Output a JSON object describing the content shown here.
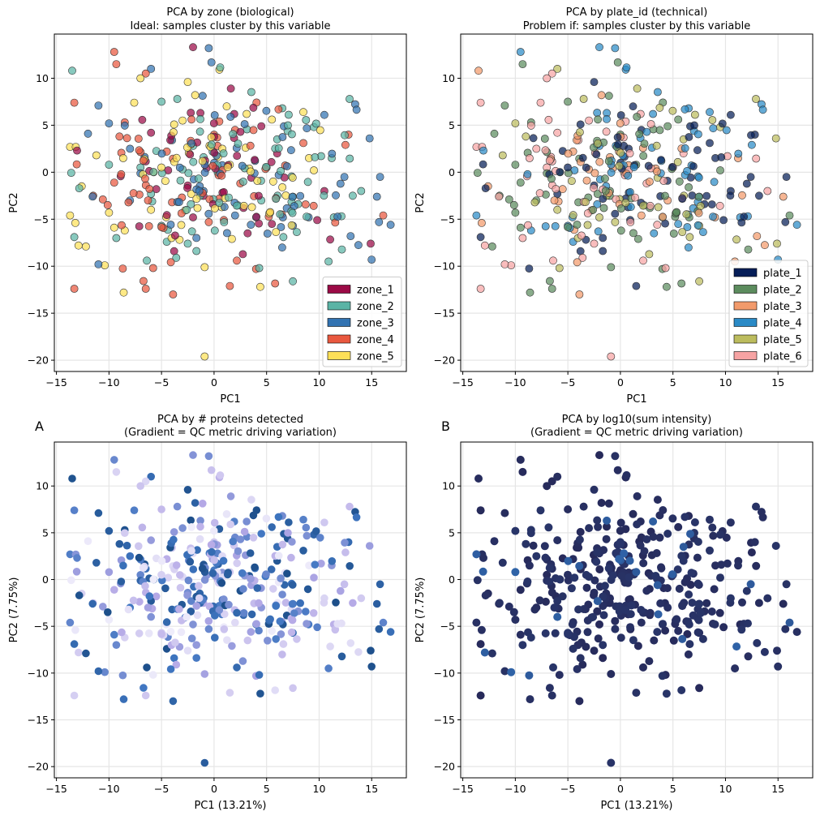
{
  "colors": {
    "zone": [
      "#9b0a46",
      "#5ab4a5",
      "#3273b2",
      "#e9583f",
      "#fde057"
    ],
    "plate": [
      "#061e58",
      "#5c8c5e",
      "#f29a6b",
      "#2a8ac6",
      "#bcbc5e",
      "#f6a3a3"
    ],
    "grid": "#e6e6e6",
    "proteins_gradient": [
      "#f0eefb",
      "#b4a8e6",
      "#3f76c1",
      "#1d4f8a"
    ],
    "intensity_gradient": [
      "#272a5a",
      "#2f63a8"
    ]
  },
  "chart_data": [
    {
      "id": "zone",
      "type": "scatter",
      "title_lines": [
        "PCA by zone (biological)",
        "Ideal: samples cluster by this variable"
      ],
      "xlabel": "PC1",
      "ylabel": "PC2",
      "xlim": [
        -15.2,
        18.3
      ],
      "ylim": [
        -21.2,
        14.7
      ],
      "xticks": [
        -15,
        -10,
        -5,
        0,
        5,
        10,
        15
      ],
      "yticks": [
        10,
        5,
        0,
        -5,
        -10,
        -15,
        -20
      ],
      "grid": true,
      "legend_position": "lower-right",
      "legend": [
        "zone_1",
        "zone_2",
        "zone_3",
        "zone_4",
        "zone_5"
      ],
      "point_source": "PCA scores of all samples (approx. 400 points)"
    },
    {
      "id": "plate",
      "type": "scatter",
      "title_lines": [
        "PCA by plate_id (technical)",
        "Problem if: samples cluster by this variable"
      ],
      "xlabel": "PC1",
      "ylabel": "PC2",
      "xlim": [
        -15.2,
        18.3
      ],
      "ylim": [
        -21.2,
        14.7
      ],
      "xticks": [
        -15,
        -10,
        -5,
        0,
        5,
        10,
        15
      ],
      "yticks": [
        10,
        5,
        0,
        -5,
        -10,
        -15,
        -20
      ],
      "grid": true,
      "legend_position": "lower-right",
      "legend": [
        "plate_1",
        "plate_2",
        "plate_3",
        "plate_4",
        "plate_5",
        "plate_6"
      ]
    },
    {
      "id": "proteins",
      "type": "scatter",
      "panel_letter": "A",
      "title_lines": [
        "PCA by # proteins detected",
        "(Gradient = QC metric driving variation)"
      ],
      "xlabel": "PC1 (13.21%)",
      "ylabel": "PC2 (7.75%)",
      "xlim": [
        -15.2,
        18.3
      ],
      "ylim": [
        -21.2,
        14.7
      ],
      "xticks": [
        -15,
        -10,
        -5,
        0,
        5,
        10,
        15
      ],
      "yticks": [
        10,
        5,
        0,
        -5,
        -10,
        -15,
        -20
      ],
      "grid": true
    },
    {
      "id": "intensity",
      "type": "scatter",
      "panel_letter": "B",
      "title_lines": [
        "PCA by log10(sum intensity)",
        "(Gradient = QC metric driving variation)"
      ],
      "xlabel": "PC1 (13.21%)",
      "ylabel": "PC2 (7.75%)",
      "xlim": [
        -15.2,
        18.3
      ],
      "ylim": [
        -21.2,
        14.7
      ],
      "xticks": [
        -15,
        -10,
        -5,
        0,
        5,
        10,
        15
      ],
      "yticks": [
        10,
        5,
        0,
        -5,
        -10,
        -15,
        -20
      ],
      "grid": true
    }
  ],
  "anchor_points": [
    [
      -13.5,
      10.8
    ],
    [
      -2.0,
      13.3
    ],
    [
      -0.5,
      13.2
    ],
    [
      -9.5,
      12.8
    ],
    [
      -9.3,
      11.5
    ],
    [
      -6.0,
      11.0
    ],
    [
      -6.5,
      10.5
    ],
    [
      -7.0,
      10.0
    ],
    [
      -2.5,
      9.6
    ],
    [
      -1.8,
      8.2
    ],
    [
      1.6,
      8.9
    ],
    [
      -13.3,
      7.4
    ],
    [
      -11.0,
      7.1
    ],
    [
      -5.0,
      7.5
    ],
    [
      -3.5,
      7.8
    ],
    [
      1.2,
      7.0
    ],
    [
      -10.0,
      5.2
    ],
    [
      -8.5,
      5.3
    ],
    [
      -3.0,
      5.5
    ],
    [
      0.5,
      5.4
    ],
    [
      3.1,
      6.2
    ],
    [
      5.5,
      5.6
    ],
    [
      6.5,
      6.8
    ],
    [
      8.5,
      6.4
    ],
    [
      10.5,
      6.1
    ],
    [
      12.9,
      7.8
    ],
    [
      -12.0,
      4.1
    ],
    [
      -9.0,
      3.8
    ],
    [
      -6.0,
      4.2
    ],
    [
      -4.0,
      3.4
    ],
    [
      0.0,
      4.0
    ],
    [
      2.0,
      4.5
    ],
    [
      4.5,
      4.9
    ],
    [
      7.0,
      4.4
    ],
    [
      9.5,
      4.8
    ],
    [
      12.8,
      4.0
    ],
    [
      14.8,
      3.6
    ],
    [
      -13.7,
      2.7
    ],
    [
      -11.2,
      1.8
    ],
    [
      -8.0,
      2.5
    ],
    [
      -4.5,
      2.2
    ],
    [
      -1.0,
      1.6
    ],
    [
      3.0,
      2.6
    ],
    [
      6.0,
      2.0
    ],
    [
      8.5,
      3.1
    ],
    [
      12.5,
      2.9
    ],
    [
      -10.0,
      0.8
    ],
    [
      -7.0,
      0.5
    ],
    [
      -3.0,
      0.3
    ],
    [
      1.5,
      0.8
    ],
    [
      5.0,
      0.5
    ],
    [
      9.5,
      0.2
    ],
    [
      12.4,
      -0.5
    ],
    [
      15.8,
      -0.5
    ],
    [
      -12.6,
      -1.5
    ],
    [
      -9.5,
      -1.1
    ],
    [
      -5.5,
      -1.8
    ],
    [
      -2.5,
      -1.4
    ],
    [
      2.5,
      -1.2
    ],
    [
      6.5,
      -1.6
    ],
    [
      10.5,
      -2.0
    ],
    [
      14.0,
      -2.0
    ],
    [
      -11.5,
      -2.5
    ],
    [
      -8.0,
      -3.0
    ],
    [
      -4.0,
      -3.2
    ],
    [
      0.5,
      -2.8
    ],
    [
      4.5,
      -3.0
    ],
    [
      8.0,
      -3.4
    ],
    [
      13.2,
      -2.5
    ],
    [
      15.5,
      -2.6
    ],
    [
      -13.7,
      -4.6
    ],
    [
      -10.0,
      -4.3
    ],
    [
      -6.0,
      -4.0
    ],
    [
      -2.0,
      -4.8
    ],
    [
      2.0,
      -4.6
    ],
    [
      5.5,
      -5.5
    ],
    [
      9.0,
      -4.8
    ],
    [
      11.4,
      -4.8
    ],
    [
      16.1,
      -4.6
    ],
    [
      -13.2,
      -5.4
    ],
    [
      -9.5,
      -5.9
    ],
    [
      -5.0,
      -5.7
    ],
    [
      -0.5,
      -5.3
    ],
    [
      3.5,
      -5.6
    ],
    [
      7.5,
      -5.7
    ],
    [
      15.7,
      -5.3
    ],
    [
      16.8,
      -5.6
    ],
    [
      -12.9,
      -7.8
    ],
    [
      -12.2,
      -7.9
    ],
    [
      -8.5,
      -6.2
    ],
    [
      -4.5,
      -7.4
    ],
    [
      1.7,
      -7.1
    ],
    [
      6.6,
      -6.9
    ],
    [
      13.0,
      -6.8
    ],
    [
      -3.8,
      -8.4
    ],
    [
      -2.5,
      -7.6
    ],
    [
      14.9,
      -7.6
    ],
    [
      -13.3,
      -6.9
    ],
    [
      -9.3,
      -7.0
    ],
    [
      -10.4,
      -9.9
    ],
    [
      -11.0,
      -9.8
    ],
    [
      -6.4,
      -9.4
    ],
    [
      -3.6,
      -9.1
    ],
    [
      -5.8,
      -10.2
    ],
    [
      -0.9,
      -10.1
    ],
    [
      4.0,
      -10.3
    ],
    [
      4.3,
      -10.2
    ],
    [
      10.9,
      -9.5
    ],
    [
      15.0,
      -9.3
    ],
    [
      -13.3,
      -12.4
    ],
    [
      -8.6,
      -12.8
    ],
    [
      -6.5,
      -12.4
    ],
    [
      -3.9,
      -13.0
    ],
    [
      1.5,
      -12.1
    ],
    [
      4.4,
      -12.2
    ],
    [
      7.5,
      -11.6
    ],
    [
      -0.9,
      -19.6
    ],
    [
      0.3,
      3.7
    ],
    [
      -2.0,
      2.8
    ],
    [
      6.0,
      3.5
    ],
    [
      -6.0,
      -2.3
    ],
    [
      2.8,
      -3.8
    ],
    [
      7.5,
      -2.6
    ],
    [
      11.2,
      1.5
    ],
    [
      -1.0,
      -2.0
    ],
    [
      3.9,
      1.2
    ],
    [
      -7.6,
      7.4
    ],
    [
      -1.3,
      6.3
    ]
  ],
  "legend_swatch_order_note": "legend entries listed top to bottom"
}
